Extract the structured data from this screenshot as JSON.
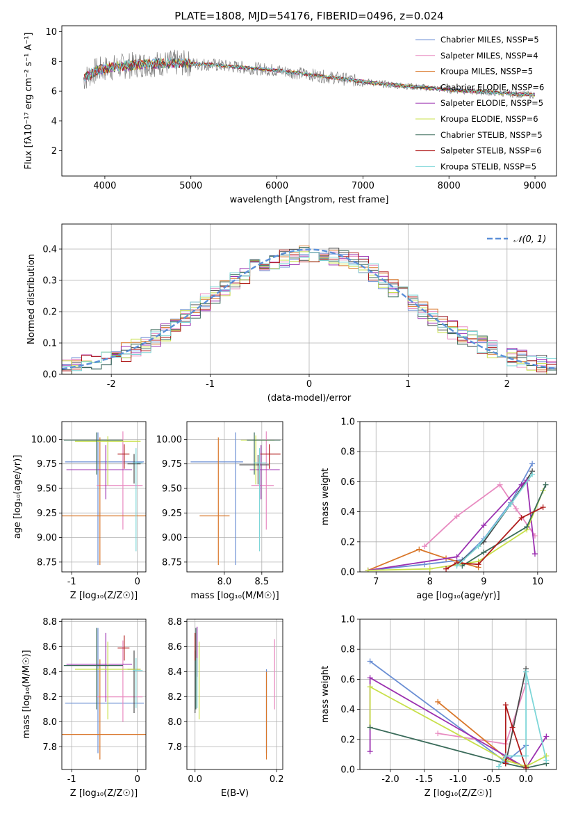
{
  "chart_data": [
    {
      "type": "line",
      "title": "PLATE=1808, MJD=54176, FIBERID=0496, z=0.024",
      "xlabel": "wavelength [Angstrom, rest frame]",
      "ylabel": "Flux [f_λ 10^-17 erg cm^-2 s^-1 A^-1]",
      "xlim": [
        3500,
        9250
      ],
      "ylim": [
        0.3,
        10.4
      ],
      "xticks": [
        4000,
        5000,
        6000,
        7000,
        8000,
        9000
      ],
      "yticks": [
        2,
        4,
        6,
        8,
        10
      ],
      "grid": false,
      "legend_position": "top-right",
      "observed_spectrum_trend": [
        {
          "x": 3750,
          "y": 6.8
        },
        {
          "x": 3900,
          "y": 7.4
        },
        {
          "x": 4100,
          "y": 7.6
        },
        {
          "x": 4400,
          "y": 7.8
        },
        {
          "x": 4800,
          "y": 7.9
        },
        {
          "x": 5200,
          "y": 7.8
        },
        {
          "x": 5600,
          "y": 7.6
        },
        {
          "x": 6000,
          "y": 7.4
        },
        {
          "x": 6400,
          "y": 7.1
        },
        {
          "x": 6800,
          "y": 6.8
        },
        {
          "x": 7200,
          "y": 6.5
        },
        {
          "x": 7600,
          "y": 6.3
        },
        {
          "x": 8000,
          "y": 6.1
        },
        {
          "x": 8400,
          "y": 5.95
        },
        {
          "x": 8800,
          "y": 5.8
        },
        {
          "x": 9000,
          "y": 5.75
        }
      ],
      "series": [
        {
          "name": "Chabrier MILES, N_SSP=5",
          "color": "#6b8fd4"
        },
        {
          "name": "Salpeter MILES, N_SSP=4",
          "color": "#e88ac0"
        },
        {
          "name": "Kroupa MILES, N_SSP=5",
          "color": "#d9772a"
        },
        {
          "name": "Chabrier ELODIE, N_SSP=6",
          "color": "#4a4a4a"
        },
        {
          "name": "Salpeter ELODIE, N_SSP=5",
          "color": "#9b30b0"
        },
        {
          "name": "Kroupa ELODIE, N_SSP=6",
          "color": "#c8e04a"
        },
        {
          "name": "Chabrier STELIB, N_SSP=5",
          "color": "#3a6b5a"
        },
        {
          "name": "Salpeter STELIB, N_SSP=6",
          "color": "#b01c1c"
        },
        {
          "name": "Kroupa STELIB, N_SSP=5",
          "color": "#7dd6d8"
        }
      ]
    },
    {
      "type": "line",
      "xlabel": "(data-model)/error",
      "ylabel": "Normed distribution",
      "xlim": [
        -2.5,
        2.5
      ],
      "ylim": [
        0,
        0.48
      ],
      "xticks": [
        -2,
        -1,
        0,
        1,
        2
      ],
      "yticks": [
        0.0,
        0.1,
        0.2,
        0.3,
        0.4
      ],
      "grid": true,
      "legend": "𝒩(0, 1)",
      "legend_position": "top-right",
      "reference_curve": "normal(0,1)",
      "bin_width": 0.1,
      "histogram_envelope": [
        {
          "x": -2.5,
          "y": 0.02
        },
        {
          "x": -2.0,
          "y": 0.05
        },
        {
          "x": -1.5,
          "y": 0.12
        },
        {
          "x": -1.0,
          "y": 0.24
        },
        {
          "x": -0.5,
          "y": 0.35
        },
        {
          "x": 0.0,
          "y": 0.39
        },
        {
          "x": 0.5,
          "y": 0.36
        },
        {
          "x": 1.0,
          "y": 0.24
        },
        {
          "x": 1.5,
          "y": 0.13
        },
        {
          "x": 2.0,
          "y": 0.06
        },
        {
          "x": 2.5,
          "y": 0.02
        }
      ]
    },
    {
      "type": "scatter",
      "xlabel": "Z [log10(Z/Z☉)]",
      "ylabel": "age  [log10(age/yr)]",
      "xlim": [
        -1.15,
        0.13
      ],
      "ylim": [
        8.65,
        10.18
      ],
      "xticks": [
        -1,
        0
      ],
      "yticks": [
        8.75,
        9.0,
        9.25,
        9.5,
        9.75,
        10.0
      ],
      "grid": true,
      "points": [
        {
          "x": -0.6,
          "y": 9.77,
          "xerr": [
            0.5,
            0.7
          ],
          "yerr": [
            1.05,
            0.3
          ],
          "color": "#6b8fd4"
        },
        {
          "x": -0.22,
          "y": 9.53,
          "xerr": [
            0.4,
            0.3
          ],
          "yerr": [
            0.45,
            0.55
          ],
          "color": "#e88ac0"
        },
        {
          "x": -0.57,
          "y": 9.22,
          "xerr": [
            0.6,
            0.7
          ],
          "yerr": [
            0.5,
            0.8
          ],
          "color": "#d9772a"
        },
        {
          "x": -0.05,
          "y": 9.75,
          "xerr": [
            0.1,
            0.1
          ],
          "yerr": [
            0.2,
            0.1
          ],
          "color": "#4a4a4a"
        },
        {
          "x": -0.48,
          "y": 9.69,
          "xerr": [
            0.6,
            0.4
          ],
          "yerr": [
            0.3,
            0.25
          ],
          "color": "#9b30b0"
        },
        {
          "x": -0.45,
          "y": 9.98,
          "xerr": [
            0.5,
            0.5
          ],
          "yerr": [
            0.45,
            0.05
          ],
          "color": "#c8e04a"
        },
        {
          "x": -0.62,
          "y": 9.99,
          "xerr": [
            0.5,
            0.4
          ],
          "yerr": [
            0.35,
            0.08
          ],
          "color": "#3a6b5a"
        },
        {
          "x": -0.2,
          "y": 9.85,
          "xerr": [
            0.1,
            0.08
          ],
          "yerr": [
            0.15,
            0.1
          ],
          "color": "#b01c1c"
        },
        {
          "x": -0.02,
          "y": 9.76,
          "xerr": [
            0.05,
            0.1
          ],
          "yerr": [
            0.9,
            0.15
          ],
          "color": "#7dd6d8"
        }
      ]
    },
    {
      "type": "scatter",
      "xlabel": "mass [log10(M/M☉)]",
      "ylabel": "",
      "xlim": [
        7.5,
        8.78
      ],
      "ylim": [
        8.65,
        10.18
      ],
      "xticks": [
        8.0,
        8.5
      ],
      "yticks": [
        8.75,
        9.0,
        9.25,
        9.5,
        9.75,
        10.0
      ],
      "grid": true,
      "points": [
        {
          "x": 8.15,
          "y": 9.77,
          "xerr": [
            0.6,
            0.1
          ],
          "yerr": [
            1.05,
            0.3
          ],
          "color": "#6b8fd4"
        },
        {
          "x": 8.56,
          "y": 9.53,
          "xerr": [
            0.2,
            0.1
          ],
          "yerr": [
            0.45,
            0.55
          ],
          "color": "#e88ac0"
        },
        {
          "x": 7.92,
          "y": 9.22,
          "xerr": [
            0.25,
            0.15
          ],
          "yerr": [
            0.5,
            0.8
          ],
          "color": "#d9772a"
        },
        {
          "x": 8.45,
          "y": 9.74,
          "xerr": [
            0.25,
            0.15
          ],
          "yerr": [
            0.2,
            0.1
          ],
          "color": "#4a4a4a"
        },
        {
          "x": 8.49,
          "y": 9.69,
          "xerr": [
            0.15,
            0.25
          ],
          "yerr": [
            0.3,
            0.25
          ],
          "color": "#9b30b0"
        },
        {
          "x": 8.42,
          "y": 9.99,
          "xerr": [
            0.2,
            0.25
          ],
          "yerr": [
            0.45,
            0.05
          ],
          "color": "#c8e04a"
        },
        {
          "x": 8.4,
          "y": 9.99,
          "xerr": [
            0.1,
            0.35
          ],
          "yerr": [
            0.35,
            0.08
          ],
          "color": "#3a6b5a"
        },
        {
          "x": 8.6,
          "y": 9.85,
          "xerr": [
            0.12,
            0.15
          ],
          "yerr": [
            0.15,
            0.1
          ],
          "color": "#b01c1c"
        },
        {
          "x": 8.47,
          "y": 9.76,
          "xerr": [
            0.08,
            0.1
          ],
          "yerr": [
            0.9,
            0.15
          ],
          "color": "#7dd6d8"
        }
      ]
    },
    {
      "type": "line",
      "xlabel": "age  [log10(age/yr)]",
      "ylabel": "mass weight",
      "xlim": [
        6.7,
        10.35
      ],
      "ylim": [
        0,
        1.0
      ],
      "xticks": [
        7,
        8,
        9,
        10
      ],
      "yticks": [
        0.0,
        0.2,
        0.4,
        0.6,
        0.8,
        1.0
      ],
      "grid": true,
      "series": [
        {
          "color": "#6b8fd4",
          "x": [
            6.85,
            7.9,
            8.6,
            9.0,
            9.5,
            9.9
          ],
          "y": [
            0.01,
            0.05,
            0.08,
            0.22,
            0.46,
            0.72
          ]
        },
        {
          "color": "#e88ac0",
          "x": [
            7.9,
            8.5,
            9.3,
            9.6,
            9.95
          ],
          "y": [
            0.17,
            0.37,
            0.58,
            0.42,
            0.24
          ]
        },
        {
          "color": "#d9772a",
          "x": [
            6.85,
            7.8,
            8.3,
            8.9
          ],
          "y": [
            0.01,
            0.15,
            0.09,
            0.03
          ]
        },
        {
          "color": "#4a4a4a",
          "x": [
            8.5,
            9.0,
            9.5,
            9.9
          ],
          "y": [
            0.05,
            0.2,
            0.45,
            0.67
          ]
        },
        {
          "color": "#9b30b0",
          "x": [
            6.85,
            8.5,
            9.0,
            9.7,
            9.8,
            9.95
          ],
          "y": [
            0.01,
            0.1,
            0.31,
            0.58,
            0.61,
            0.12
          ]
        },
        {
          "color": "#c8e04a",
          "x": [
            6.85,
            8.0,
            8.9,
            9.8,
            10.1
          ],
          "y": [
            0.01,
            0.02,
            0.07,
            0.28,
            0.54
          ]
        },
        {
          "color": "#3a6b5a",
          "x": [
            8.6,
            9.0,
            9.8,
            10.15
          ],
          "y": [
            0.04,
            0.13,
            0.3,
            0.58
          ]
        },
        {
          "color": "#b01c1c",
          "x": [
            8.3,
            8.5,
            8.9,
            9.7,
            10.1
          ],
          "y": [
            0.02,
            0.06,
            0.05,
            0.36,
            0.43
          ]
        },
        {
          "color": "#7dd6d8",
          "x": [
            8.5,
            8.9,
            9.5,
            9.9
          ],
          "y": [
            0.04,
            0.17,
            0.45,
            0.65
          ]
        }
      ]
    },
    {
      "type": "scatter",
      "xlabel": "Z [log10(Z/Z☉)]",
      "ylabel": "mass [log10(M/M☉)]",
      "xlim": [
        -1.15,
        0.13
      ],
      "ylim": [
        7.62,
        8.82
      ],
      "xticks": [
        -1,
        0
      ],
      "yticks": [
        7.8,
        8.0,
        8.2,
        8.4,
        8.6,
        8.8
      ],
      "grid": true,
      "points": [
        {
          "x": -0.6,
          "y": 8.15,
          "xerr": [
            0.5,
            0.7
          ],
          "yerr": [
            0.4,
            0.6
          ],
          "color": "#6b8fd4"
        },
        {
          "x": -0.22,
          "y": 8.2,
          "xerr": [
            0.4,
            0.3
          ],
          "yerr": [
            0.2,
            0.45
          ],
          "color": "#e88ac0"
        },
        {
          "x": -0.57,
          "y": 7.9,
          "xerr": [
            0.6,
            0.7
          ],
          "yerr": [
            0.2,
            0.6
          ],
          "color": "#d9772a"
        },
        {
          "x": -0.05,
          "y": 8.42,
          "xerr": [
            0.1,
            0.1
          ],
          "yerr": [
            0.35,
            0.15
          ],
          "color": "#4a4a4a"
        },
        {
          "x": -0.48,
          "y": 8.46,
          "xerr": [
            0.6,
            0.4
          ],
          "yerr": [
            0.3,
            0.25
          ],
          "color": "#9b30b0"
        },
        {
          "x": -0.45,
          "y": 8.42,
          "xerr": [
            0.5,
            0.5
          ],
          "yerr": [
            0.4,
            0.22
          ],
          "color": "#c8e04a"
        },
        {
          "x": -0.62,
          "y": 8.45,
          "xerr": [
            0.5,
            0.4
          ],
          "yerr": [
            0.35,
            0.3
          ],
          "color": "#3a6b5a"
        },
        {
          "x": -0.2,
          "y": 8.59,
          "xerr": [
            0.1,
            0.08
          ],
          "yerr": [
            0.1,
            0.1
          ],
          "color": "#b01c1c"
        },
        {
          "x": -0.02,
          "y": 8.41,
          "xerr": [
            0.05,
            0.1
          ],
          "yerr": [
            0.3,
            0.1
          ],
          "color": "#7dd6d8"
        }
      ]
    },
    {
      "type": "scatter",
      "xlabel": "E(B-V)",
      "ylabel": "",
      "xlim": [
        -0.02,
        0.215
      ],
      "ylim": [
        7.62,
        8.82
      ],
      "xticks": [
        0.0,
        0.2
      ],
      "yticks": [
        7.8,
        8.0,
        8.2,
        8.4,
        8.6,
        8.8
      ],
      "grid": true,
      "points": [
        {
          "x": 0.175,
          "y": 8.15,
          "yerr": [
            0.4,
            0.27
          ],
          "color": "#6b8fd4"
        },
        {
          "x": 0.195,
          "y": 8.38,
          "yerr": [
            0.28,
            0.28
          ],
          "color": "#e88ac0"
        },
        {
          "x": 0.175,
          "y": 8.05,
          "yerr": [
            0.35,
            0.35
          ],
          "color": "#d9772a"
        },
        {
          "x": 0.0,
          "y": 8.42,
          "yerr": [
            0.35,
            0.15
          ],
          "color": "#4a4a4a"
        },
        {
          "x": 0.005,
          "y": 8.56,
          "yerr": [
            0.2,
            0.2
          ],
          "color": "#9b30b0"
        },
        {
          "x": 0.01,
          "y": 8.42,
          "yerr": [
            0.4,
            0.22
          ],
          "color": "#c8e04a"
        },
        {
          "x": 0.002,
          "y": 8.45,
          "yerr": [
            0.35,
            0.3
          ],
          "color": "#3a6b5a"
        },
        {
          "x": 0.0,
          "y": 8.59,
          "yerr": [
            0.1,
            0.12
          ],
          "color": "#b01c1c"
        },
        {
          "x": 0.005,
          "y": 8.41,
          "yerr": [
            0.3,
            0.1
          ],
          "color": "#7dd6d8"
        }
      ]
    },
    {
      "type": "line",
      "xlabel": "Z [log10(Z/Z☉)]",
      "ylabel": "mass weight",
      "xlim": [
        -2.45,
        0.45
      ],
      "ylim": [
        0,
        1.0
      ],
      "xticks": [
        -2.0,
        -1.5,
        -1.0,
        -0.5,
        0.0
      ],
      "yticks": [
        0.0,
        0.2,
        0.4,
        0.6,
        0.8,
        1.0
      ],
      "grid": true,
      "series": [
        {
          "color": "#6b8fd4",
          "x": [
            -2.3,
            -0.3,
            0.0
          ],
          "y": [
            0.72,
            0.05,
            0.16
          ]
        },
        {
          "color": "#e88ac0",
          "x": [
            -1.3,
            -0.3,
            0.0
          ],
          "y": [
            0.24,
            0.17,
            0.57
          ]
        },
        {
          "color": "#d9772a",
          "x": [
            -1.3,
            -0.3,
            0.0
          ],
          "y": [
            0.45,
            0.08,
            0.01
          ]
        },
        {
          "color": "#4a4a4a",
          "x": [
            -0.3,
            0.0
          ],
          "y": [
            0.04,
            0.67
          ]
        },
        {
          "color": "#9b30b0",
          "x": [
            -2.3,
            -2.3,
            -0.3,
            0.0,
            0.3
          ],
          "y": [
            0.12,
            0.61,
            0.09,
            0.01,
            0.22
          ]
        },
        {
          "color": "#c8e04a",
          "x": [
            -2.3,
            -2.3,
            -0.3,
            0.0,
            0.3
          ],
          "y": [
            0.28,
            0.55,
            0.06,
            0.02,
            0.09
          ]
        },
        {
          "color": "#3a6b5a",
          "x": [
            -2.3,
            -0.3,
            0.0,
            0.3
          ],
          "y": [
            0.28,
            0.04,
            0.01,
            0.04
          ]
        },
        {
          "color": "#b01c1c",
          "x": [
            -0.3,
            -0.3,
            -0.2,
            0.0
          ],
          "y": [
            0.04,
            0.43,
            0.28,
            0.01
          ]
        },
        {
          "color": "#7dd6d8",
          "x": [
            -0.4,
            -0.3,
            0.0,
            0.0,
            0.3
          ],
          "y": [
            0.02,
            0.09,
            0.09,
            0.65,
            0.06
          ]
        }
      ]
    }
  ]
}
